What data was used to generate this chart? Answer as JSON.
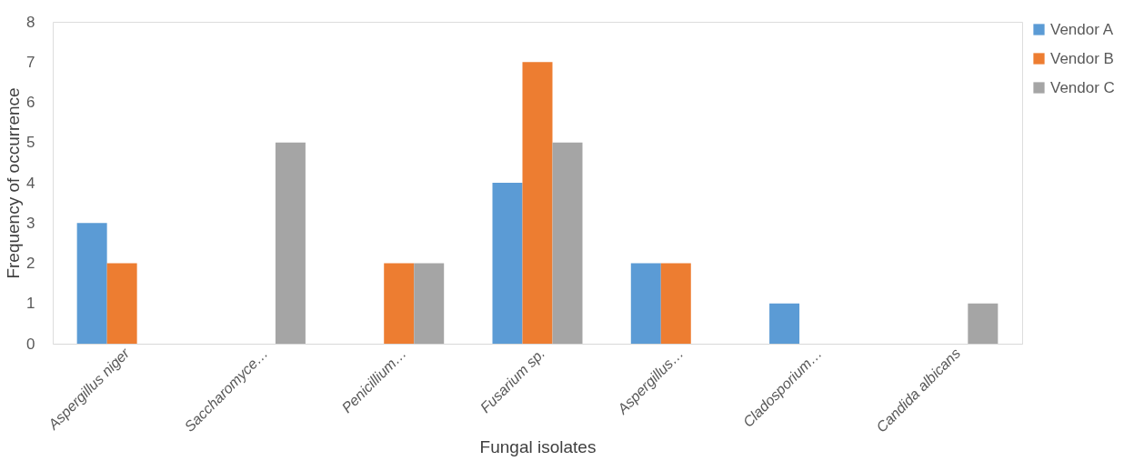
{
  "chart_data": {
    "type": "bar",
    "xlabel": "Fungal isolates",
    "ylabel": "Frequency of occurrence",
    "categories": [
      "Aspergillus niger",
      "Saccharomyce…",
      "Penicillium…",
      "Fusarium sp.",
      "Aspergillus…",
      "Cladosporium…",
      "Candida albicans"
    ],
    "series": [
      {
        "name": "Vendor A",
        "color": "#5b9bd5",
        "values": [
          3,
          0,
          0,
          4,
          2,
          1,
          0
        ]
      },
      {
        "name": "Vendor B",
        "color": "#ed7d31",
        "values": [
          2,
          0,
          2,
          7,
          2,
          0,
          0
        ]
      },
      {
        "name": "Vendor C",
        "color": "#a5a5a5",
        "values": [
          0,
          5,
          2,
          5,
          0,
          0,
          1
        ]
      }
    ],
    "ylim": [
      0,
      8
    ],
    "yticks": [
      0,
      1,
      2,
      3,
      4,
      5,
      6,
      7,
      8
    ],
    "grid": false,
    "legend": "right"
  }
}
